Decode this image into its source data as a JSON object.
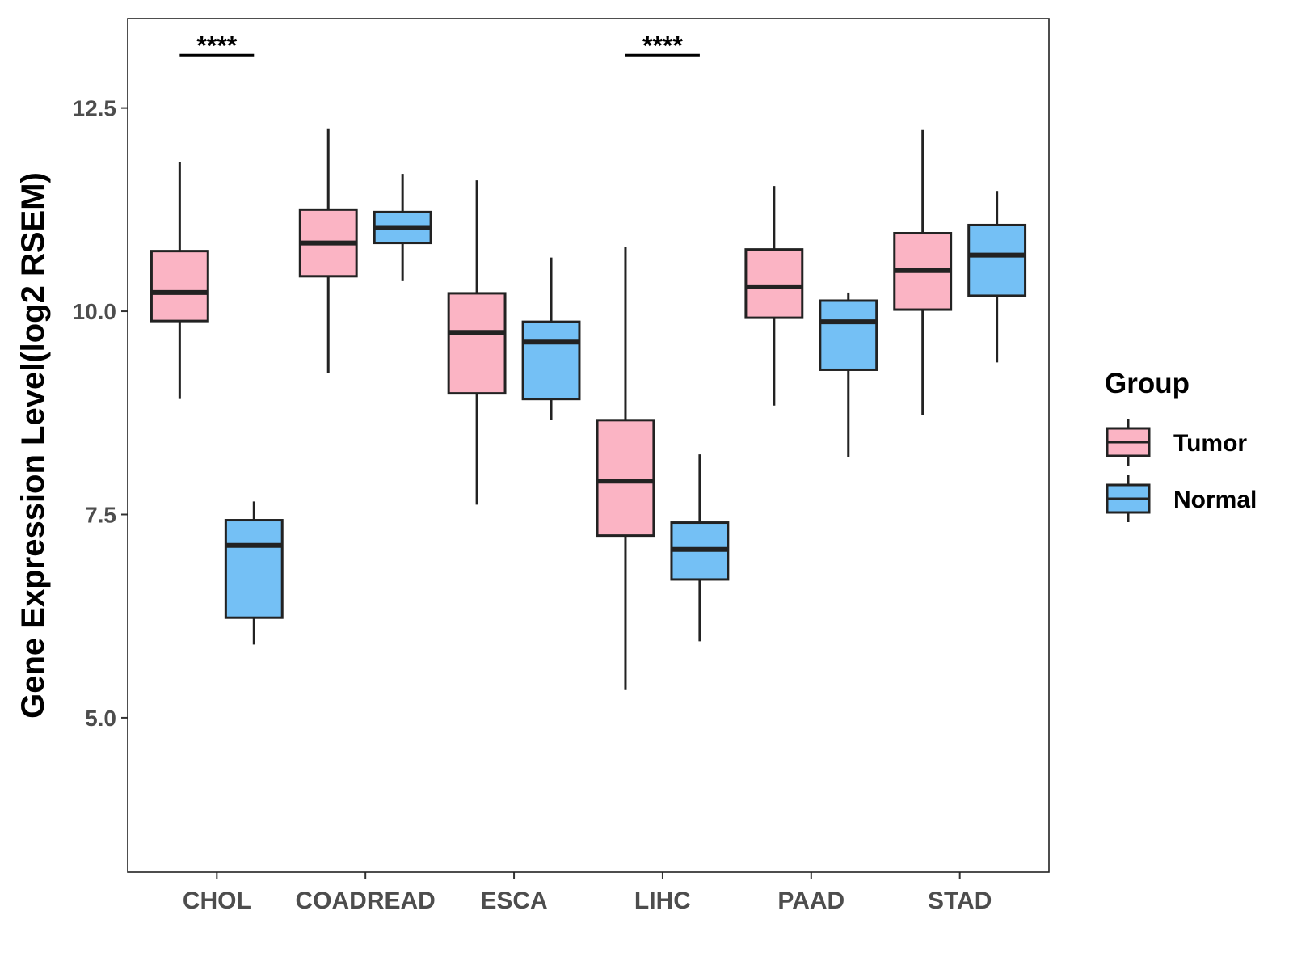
{
  "chart_data": {
    "type": "boxplot",
    "title": "",
    "xlabel": "",
    "ylabel": "Gene Expression Level(log2 RSEM)",
    "ylim": [
      3.1,
      13.6
    ],
    "yticks": [
      5.0,
      7.5,
      10.0,
      12.5
    ],
    "ytick_labels": [
      "5.0",
      "7.5",
      "10.0",
      "12.5"
    ],
    "grid": false,
    "categories": [
      "CHOL",
      "COADREAD",
      "ESCA",
      "LIHC",
      "PAAD",
      "STAD"
    ],
    "legend": {
      "title": "Group",
      "position": "right",
      "entries": [
        {
          "name": "Tumor",
          "color": "#FBB4C4"
        },
        {
          "name": "Normal",
          "color": "#74C0F5"
        }
      ]
    },
    "series": [
      {
        "name": "Tumor",
        "color": "#FBB4C4",
        "boxes": [
          {
            "category": "CHOL",
            "min": 8.92,
            "q1": 9.88,
            "median": 10.23,
            "q3": 10.74,
            "max": 11.83
          },
          {
            "category": "COADREAD",
            "min": 9.24,
            "q1": 10.43,
            "median": 10.84,
            "q3": 11.25,
            "max": 12.25
          },
          {
            "category": "ESCA",
            "min": 7.62,
            "q1": 8.99,
            "median": 9.74,
            "q3": 10.22,
            "max": 11.61
          },
          {
            "category": "LIHC",
            "min": 5.34,
            "q1": 7.24,
            "median": 7.91,
            "q3": 8.66,
            "max": 10.79
          },
          {
            "category": "PAAD",
            "min": 8.84,
            "q1": 9.92,
            "median": 10.3,
            "q3": 10.76,
            "max": 11.54
          },
          {
            "category": "STAD",
            "min": 8.72,
            "q1": 10.02,
            "median": 10.5,
            "q3": 10.96,
            "max": 12.23
          }
        ]
      },
      {
        "name": "Normal",
        "color": "#74C0F5",
        "boxes": [
          {
            "category": "CHOL",
            "min": 5.9,
            "q1": 6.23,
            "median": 7.12,
            "q3": 7.43,
            "max": 7.66
          },
          {
            "category": "COADREAD",
            "min": 10.37,
            "q1": 10.84,
            "median": 11.03,
            "q3": 11.22,
            "max": 11.69
          },
          {
            "category": "ESCA",
            "min": 8.66,
            "q1": 8.92,
            "median": 9.62,
            "q3": 9.87,
            "max": 10.66
          },
          {
            "category": "LIHC",
            "min": 5.94,
            "q1": 6.7,
            "median": 7.07,
            "q3": 7.4,
            "max": 8.24
          },
          {
            "category": "PAAD",
            "min": 8.21,
            "q1": 9.28,
            "median": 9.87,
            "q3": 10.13,
            "max": 10.23
          },
          {
            "category": "STAD",
            "min": 9.37,
            "q1": 10.19,
            "median": 10.69,
            "q3": 11.06,
            "max": 11.48
          }
        ]
      }
    ],
    "annotations": [
      {
        "category": "CHOL",
        "text": "****",
        "y": 13.15
      },
      {
        "category": "LIHC",
        "text": "****",
        "y": 13.15
      }
    ]
  }
}
